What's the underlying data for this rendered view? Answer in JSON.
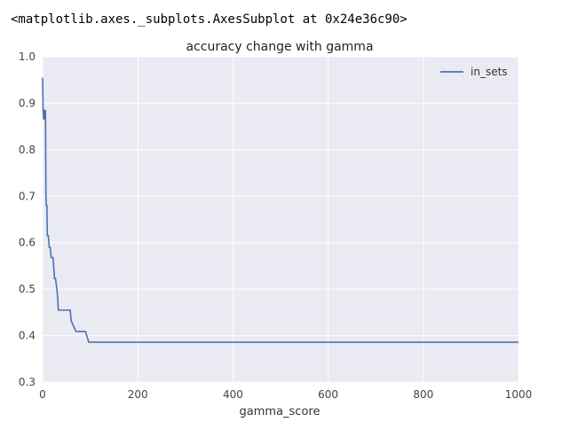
{
  "output_repr": "<matplotlib.axes._subplots.AxesSubplot at 0x24e36c90>",
  "chart_data": {
    "type": "line",
    "title": "accuracy change with gamma",
    "xlabel": "gamma_score",
    "ylabel": "",
    "xlim": [
      0,
      1000
    ],
    "ylim": [
      0.3,
      1.0
    ],
    "xticks": [
      0,
      200,
      400,
      600,
      800,
      1000
    ],
    "yticks": [
      0.3,
      0.4,
      0.5,
      0.6,
      0.7,
      0.8,
      0.9,
      1.0
    ],
    "grid": true,
    "legend_position": "top-right",
    "colors": {
      "background": "#EAEAF2",
      "grid": "#FFFFFF",
      "series": "#4C72B0"
    },
    "series": [
      {
        "name": "in_sets",
        "x": [
          0,
          1,
          2,
          3,
          4,
          5,
          6,
          7,
          8,
          9,
          10,
          12,
          14,
          16,
          18,
          20,
          22,
          25,
          27,
          30,
          32,
          33,
          35,
          40,
          50,
          58,
          60,
          70,
          80,
          90,
          97,
          100,
          200,
          400,
          600,
          800,
          1000
        ],
        "values": [
          0.955,
          0.885,
          0.865,
          0.885,
          0.885,
          0.865,
          0.885,
          0.7,
          0.68,
          0.68,
          0.615,
          0.615,
          0.59,
          0.59,
          0.568,
          0.568,
          0.568,
          0.523,
          0.523,
          0.5,
          0.477,
          0.455,
          0.455,
          0.455,
          0.455,
          0.455,
          0.432,
          0.409,
          0.409,
          0.409,
          0.386,
          0.386,
          0.386,
          0.386,
          0.386,
          0.386,
          0.386
        ]
      }
    ]
  }
}
